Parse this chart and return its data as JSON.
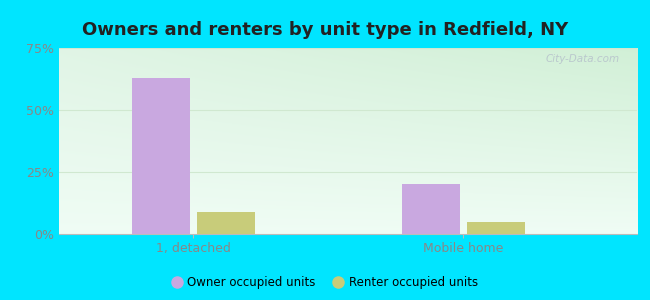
{
  "title": "Owners and renters by unit type in Redfield, NY",
  "categories": [
    "1, detached",
    "Mobile home"
  ],
  "owner_values": [
    63,
    20
  ],
  "renter_values": [
    9,
    5
  ],
  "owner_color": "#c9a8e0",
  "renter_color": "#c8cc7a",
  "ylim": [
    0,
    75
  ],
  "yticks": [
    0,
    25,
    50,
    75
  ],
  "yticklabels": [
    "0%",
    "25%",
    "50%",
    "75%"
  ],
  "bar_width": 0.3,
  "outer_color": "#00e5ff",
  "legend_labels": [
    "Owner occupied units",
    "Renter occupied units"
  ],
  "watermark": "City-Data.com",
  "title_fontsize": 13,
  "tick_color": "#888888",
  "grid_color": "#e0ece0"
}
